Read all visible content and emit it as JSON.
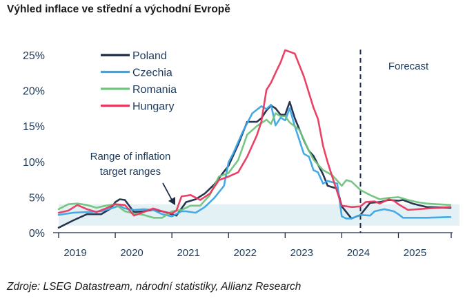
{
  "title": "Výhled inflace ve střední a východní Evropě",
  "source": "Zdroje: LSEG Datastream, národní statistiky, Allianz Research",
  "chart_data": {
    "type": "line",
    "title": "Výhled inflace ve střední a východní Evropě",
    "xlabel": "",
    "ylabel": "",
    "x_ticks": [
      "2019",
      "2020",
      "2021",
      "2022",
      "2023",
      "2024",
      "2025"
    ],
    "y_ticks": [
      "0%",
      "5%",
      "10%",
      "15%",
      "20%",
      "25%"
    ],
    "xlim": [
      2019.0,
      2025.92
    ],
    "ylim": [
      0,
      25
    ],
    "grid": false,
    "legend_position": "top-left",
    "forecast_start": 2024.33,
    "forecast_label": "Forecast",
    "band": {
      "label": "Range of inflation target ranges",
      "low": 1,
      "high": 4
    },
    "series": [
      {
        "name": "Poland",
        "color": "#1b2a47",
        "points": [
          [
            2019.0,
            0.7
          ],
          [
            2019.25,
            1.7
          ],
          [
            2019.5,
            2.6
          ],
          [
            2019.75,
            2.6
          ],
          [
            2019.92,
            3.4
          ],
          [
            2020.0,
            4.3
          ],
          [
            2020.08,
            4.7
          ],
          [
            2020.17,
            4.6
          ],
          [
            2020.33,
            2.9
          ],
          [
            2020.5,
            3.0
          ],
          [
            2020.67,
            3.2
          ],
          [
            2020.83,
            3.0
          ],
          [
            2021.0,
            2.6
          ],
          [
            2021.08,
            2.4
          ],
          [
            2021.25,
            4.3
          ],
          [
            2021.42,
            4.7
          ],
          [
            2021.58,
            5.5
          ],
          [
            2021.75,
            6.8
          ],
          [
            2021.92,
            8.6
          ],
          [
            2022.0,
            9.4
          ],
          [
            2022.17,
            12.4
          ],
          [
            2022.33,
            15.6
          ],
          [
            2022.5,
            15.6
          ],
          [
            2022.58,
            16.1
          ],
          [
            2022.67,
            17.2
          ],
          [
            2022.75,
            17.9
          ],
          [
            2022.83,
            17.5
          ],
          [
            2022.92,
            16.6
          ],
          [
            2023.0,
            16.6
          ],
          [
            2023.08,
            18.4
          ],
          [
            2023.17,
            16.1
          ],
          [
            2023.33,
            13.0
          ],
          [
            2023.42,
            11.5
          ],
          [
            2023.5,
            10.8
          ],
          [
            2023.67,
            8.2
          ],
          [
            2023.75,
            6.6
          ],
          [
            2023.92,
            6.2
          ],
          [
            2024.0,
            3.7
          ],
          [
            2024.17,
            2.0
          ],
          [
            2024.33,
            2.5
          ],
          [
            2024.5,
            4.2
          ],
          [
            2024.67,
            4.3
          ],
          [
            2024.83,
            4.6
          ],
          [
            2025.0,
            4.5
          ],
          [
            2025.08,
            4.6
          ],
          [
            2025.25,
            4.1
          ],
          [
            2025.5,
            3.6
          ],
          [
            2025.92,
            3.5
          ]
        ]
      },
      {
        "name": "Czechia",
        "color": "#3ba5e6",
        "points": [
          [
            2019.0,
            2.5
          ],
          [
            2019.25,
            2.8
          ],
          [
            2019.5,
            2.9
          ],
          [
            2019.75,
            3.0
          ],
          [
            2019.92,
            3.4
          ],
          [
            2020.08,
            3.8
          ],
          [
            2020.17,
            3.4
          ],
          [
            2020.33,
            3.2
          ],
          [
            2020.5,
            3.3
          ],
          [
            2020.67,
            3.2
          ],
          [
            2020.83,
            2.6
          ],
          [
            2021.0,
            2.3
          ],
          [
            2021.17,
            3.0
          ],
          [
            2021.25,
            3.0
          ],
          [
            2021.42,
            2.8
          ],
          [
            2021.58,
            3.6
          ],
          [
            2021.75,
            4.9
          ],
          [
            2021.92,
            6.6
          ],
          [
            2022.0,
            9.9
          ],
          [
            2022.08,
            11.1
          ],
          [
            2022.25,
            14.2
          ],
          [
            2022.42,
            16.8
          ],
          [
            2022.58,
            17.8
          ],
          [
            2022.67,
            17.4
          ],
          [
            2022.75,
            18.0
          ],
          [
            2022.83,
            15.1
          ],
          [
            2022.92,
            16.2
          ],
          [
            2023.0,
            15.8
          ],
          [
            2023.08,
            17.5
          ],
          [
            2023.17,
            15.0
          ],
          [
            2023.33,
            11.1
          ],
          [
            2023.42,
            10.7
          ],
          [
            2023.5,
            8.8
          ],
          [
            2023.58,
            8.5
          ],
          [
            2023.67,
            6.9
          ],
          [
            2023.75,
            7.3
          ],
          [
            2023.92,
            6.9
          ],
          [
            2024.0,
            2.3
          ],
          [
            2024.08,
            2.0
          ],
          [
            2024.17,
            2.0
          ],
          [
            2024.33,
            2.5
          ],
          [
            2024.5,
            2.4
          ],
          [
            2024.58,
            3.0
          ],
          [
            2024.75,
            3.3
          ],
          [
            2024.92,
            3.0
          ],
          [
            2025.0,
            2.6
          ],
          [
            2025.08,
            2.1
          ],
          [
            2025.25,
            2.1
          ],
          [
            2025.5,
            2.1
          ],
          [
            2025.92,
            2.2
          ]
        ]
      },
      {
        "name": "Romania",
        "color": "#6fc47c",
        "points": [
          [
            2019.0,
            3.3
          ],
          [
            2019.17,
            4.0
          ],
          [
            2019.33,
            4.1
          ],
          [
            2019.5,
            3.9
          ],
          [
            2019.67,
            3.5
          ],
          [
            2019.83,
            3.8
          ],
          [
            2020.0,
            4.0
          ],
          [
            2020.17,
            3.0
          ],
          [
            2020.33,
            2.7
          ],
          [
            2020.5,
            2.5
          ],
          [
            2020.67,
            2.1
          ],
          [
            2020.83,
            2.1
          ],
          [
            2021.0,
            3.0
          ],
          [
            2021.17,
            3.2
          ],
          [
            2021.33,
            3.8
          ],
          [
            2021.5,
            3.8
          ],
          [
            2021.67,
            5.3
          ],
          [
            2021.83,
            7.9
          ],
          [
            2022.0,
            8.4
          ],
          [
            2022.17,
            10.2
          ],
          [
            2022.33,
            13.8
          ],
          [
            2022.5,
            15.0
          ],
          [
            2022.67,
            15.9
          ],
          [
            2022.75,
            15.3
          ],
          [
            2022.83,
            16.8
          ],
          [
            2022.92,
            16.4
          ],
          [
            2023.0,
            16.4
          ],
          [
            2023.08,
            15.5
          ],
          [
            2023.25,
            14.5
          ],
          [
            2023.42,
            11.5
          ],
          [
            2023.5,
            10.3
          ],
          [
            2023.67,
            8.8
          ],
          [
            2023.83,
            8.1
          ],
          [
            2024.0,
            6.6
          ],
          [
            2024.08,
            7.4
          ],
          [
            2024.17,
            7.2
          ],
          [
            2024.33,
            6.0
          ],
          [
            2024.5,
            5.3
          ],
          [
            2024.67,
            4.7
          ],
          [
            2024.83,
            4.9
          ],
          [
            2025.0,
            5.0
          ],
          [
            2025.17,
            4.6
          ],
          [
            2025.33,
            4.3
          ],
          [
            2025.5,
            4.1
          ],
          [
            2025.92,
            3.9
          ]
        ]
      },
      {
        "name": "Hungary",
        "color": "#e8385e",
        "points": [
          [
            2019.0,
            2.8
          ],
          [
            2019.17,
            3.1
          ],
          [
            2019.33,
            3.9
          ],
          [
            2019.5,
            3.3
          ],
          [
            2019.67,
            2.9
          ],
          [
            2019.83,
            3.4
          ],
          [
            2020.0,
            4.0
          ],
          [
            2020.17,
            3.9
          ],
          [
            2020.33,
            2.4
          ],
          [
            2020.5,
            2.9
          ],
          [
            2020.67,
            3.4
          ],
          [
            2020.83,
            3.0
          ],
          [
            2021.0,
            2.7
          ],
          [
            2021.08,
            3.1
          ],
          [
            2021.17,
            5.1
          ],
          [
            2021.33,
            5.3
          ],
          [
            2021.5,
            4.6
          ],
          [
            2021.67,
            5.5
          ],
          [
            2021.83,
            7.4
          ],
          [
            2022.0,
            7.9
          ],
          [
            2022.17,
            8.5
          ],
          [
            2022.33,
            10.7
          ],
          [
            2022.5,
            13.7
          ],
          [
            2022.58,
            15.6
          ],
          [
            2022.67,
            20.1
          ],
          [
            2022.75,
            21.1
          ],
          [
            2022.83,
            22.5
          ],
          [
            2022.92,
            24.0
          ],
          [
            2023.0,
            25.7
          ],
          [
            2023.17,
            25.2
          ],
          [
            2023.33,
            22.0
          ],
          [
            2023.5,
            17.6
          ],
          [
            2023.58,
            16.0
          ],
          [
            2023.67,
            12.2
          ],
          [
            2023.75,
            9.9
          ],
          [
            2023.83,
            7.9
          ],
          [
            2024.0,
            3.8
          ],
          [
            2024.17,
            3.6
          ],
          [
            2024.33,
            3.7
          ],
          [
            2024.42,
            4.3
          ],
          [
            2024.58,
            4.4
          ],
          [
            2024.67,
            4.1
          ],
          [
            2024.83,
            4.7
          ],
          [
            2024.92,
            4.5
          ],
          [
            2025.0,
            4.0
          ],
          [
            2025.17,
            3.2
          ],
          [
            2025.5,
            3.4
          ],
          [
            2025.92,
            3.6
          ]
        ]
      }
    ]
  }
}
